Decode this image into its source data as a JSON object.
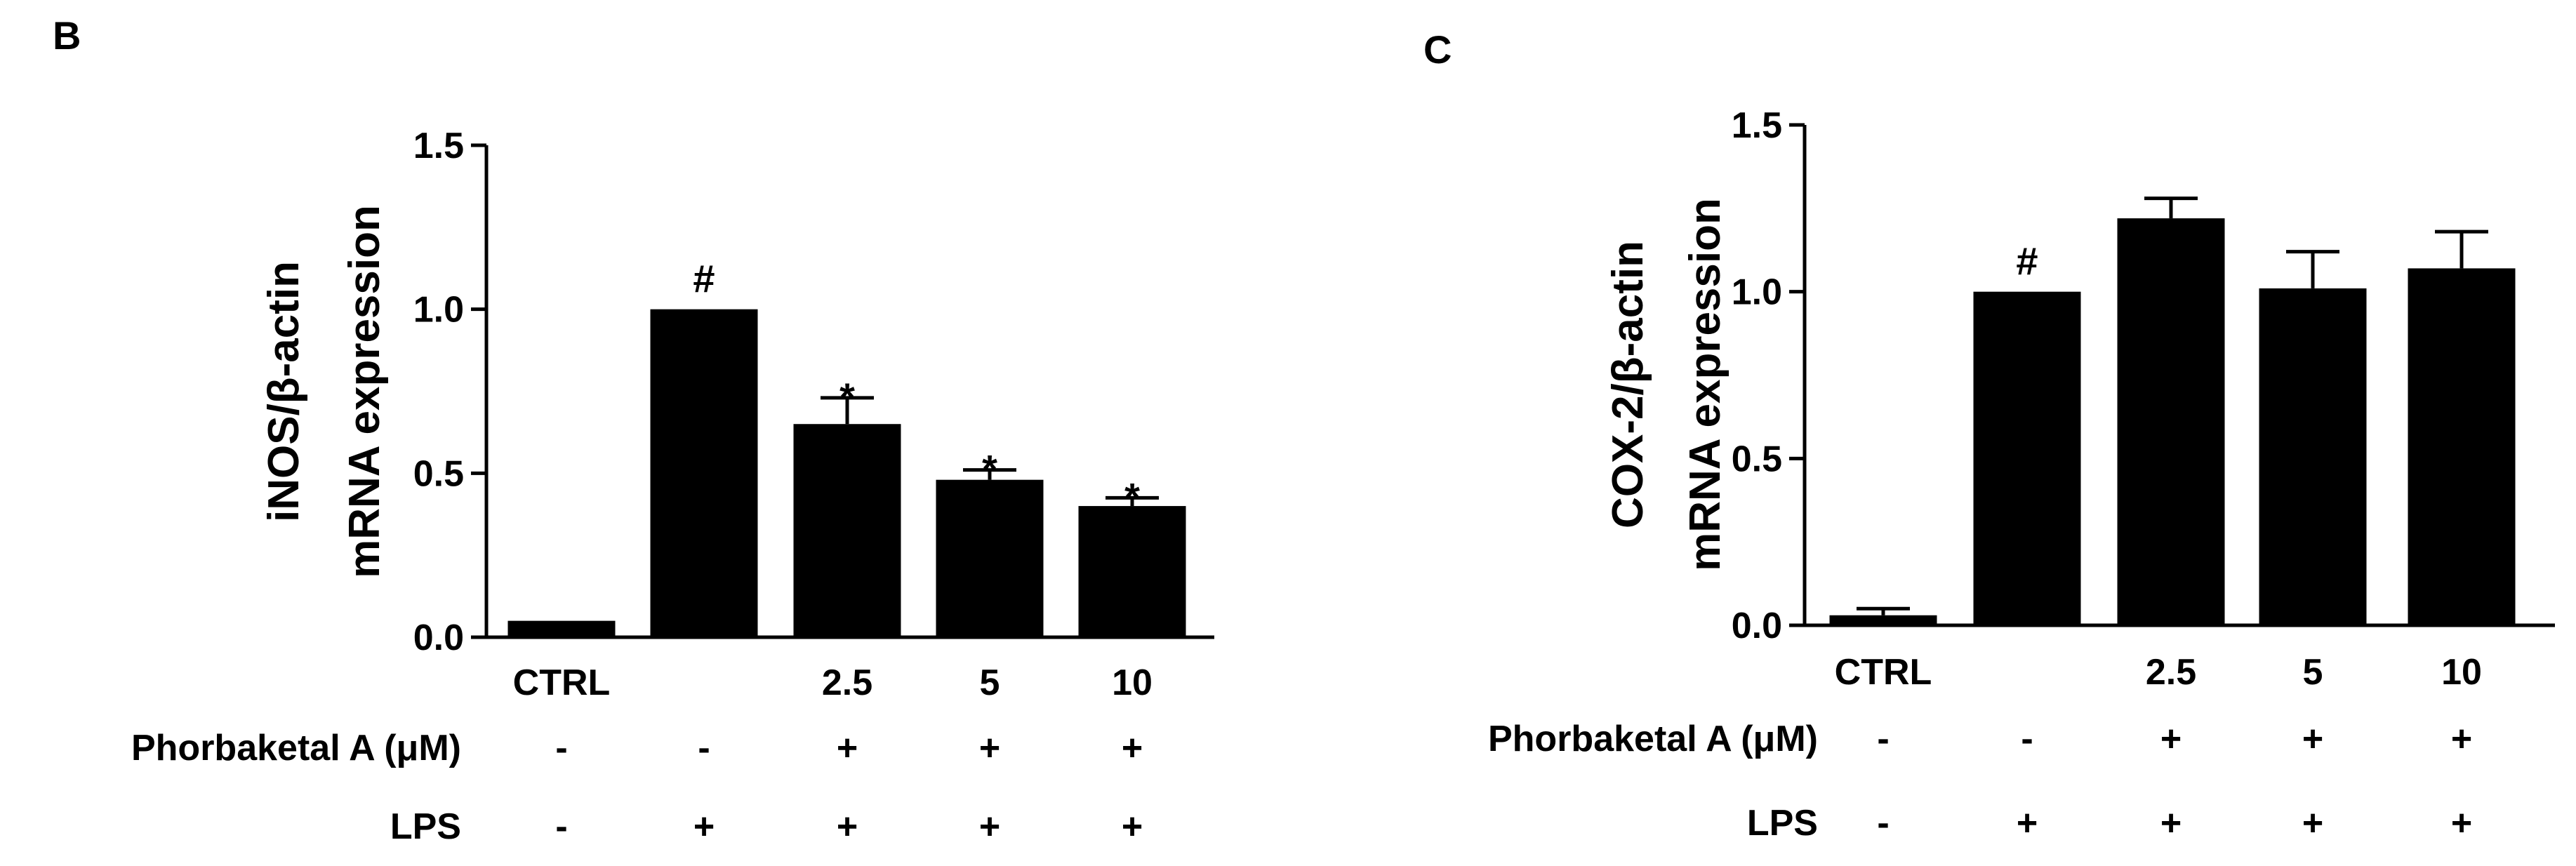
{
  "chart_data": [
    {
      "type": "bar",
      "panel": "B",
      "ylabel": [
        "iNOS/β-actin",
        "mRNA expression"
      ],
      "ylim": [
        0,
        1.5
      ],
      "yticks": [
        "0.0",
        "0.5",
        "1.0",
        "1.5"
      ],
      "categories": [
        "CTRL",
        "",
        "2.5",
        "5",
        "10"
      ],
      "values": [
        0.05,
        1.0,
        0.65,
        0.48,
        0.4
      ],
      "errors": [
        0.0,
        0.0,
        0.08,
        0.03,
        0.025
      ],
      "significance": [
        "",
        "#",
        "*",
        "*",
        "*"
      ],
      "rows": [
        {
          "label": "Phorbaketal A (μM)",
          "signs": [
            "-",
            "-",
            "+",
            "+",
            "+"
          ]
        },
        {
          "label": "LPS",
          "signs": [
            "-",
            "+",
            "+",
            "+",
            "+"
          ]
        }
      ],
      "bar_color": "#000000",
      "grid": false
    },
    {
      "type": "bar",
      "panel": "C",
      "ylabel": [
        "COX-2/β-actin",
        "mRNA expression"
      ],
      "ylim": [
        0,
        1.5
      ],
      "yticks": [
        "0.0",
        "0.5",
        "1.0",
        "1.5"
      ],
      "categories": [
        "CTRL",
        "",
        "2.5",
        "5",
        "10"
      ],
      "values": [
        0.03,
        1.0,
        1.22,
        1.01,
        1.07
      ],
      "errors": [
        0.02,
        0.0,
        0.06,
        0.11,
        0.11
      ],
      "significance": [
        "",
        "#",
        "",
        "",
        ""
      ],
      "rows": [
        {
          "label": "Phorbaketal A (μM)",
          "signs": [
            "-",
            "-",
            "+",
            "+",
            "+"
          ]
        },
        {
          "label": "LPS",
          "signs": [
            "-",
            "+",
            "+",
            "+",
            "+"
          ]
        }
      ],
      "bar_color": "#000000",
      "grid": false
    }
  ]
}
